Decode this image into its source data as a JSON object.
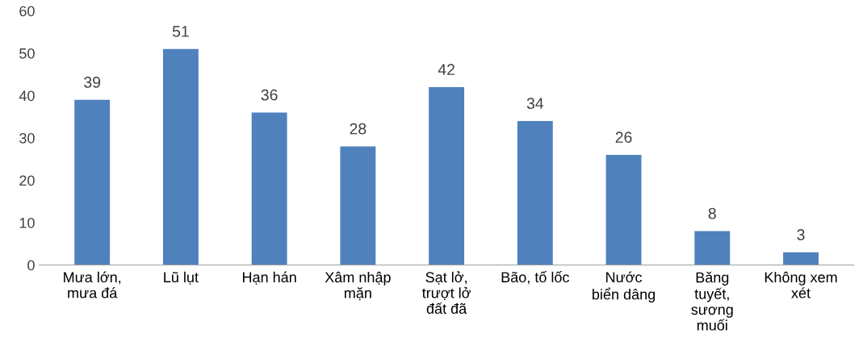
{
  "chart_data": {
    "type": "bar",
    "categories": [
      "Mưa lớn,\nmưa đá",
      "Lũ lụt",
      "Hạn hán",
      "Xâm nhập\nmặn",
      "Sạt lở,\ntrượt lở\nđất đã",
      "Bão, tố lốc",
      "Nước\nbiển dâng",
      "Băng\ntuyết,\nsương\nmuối",
      "Không xem\nxét"
    ],
    "values": [
      39,
      51,
      36,
      28,
      42,
      34,
      26,
      8,
      3
    ],
    "color": "#4f81bd",
    "ylim": [
      0,
      60
    ],
    "yticks": [
      0,
      10,
      20,
      30,
      40,
      50,
      60
    ],
    "grid": false,
    "data_labels": true
  }
}
